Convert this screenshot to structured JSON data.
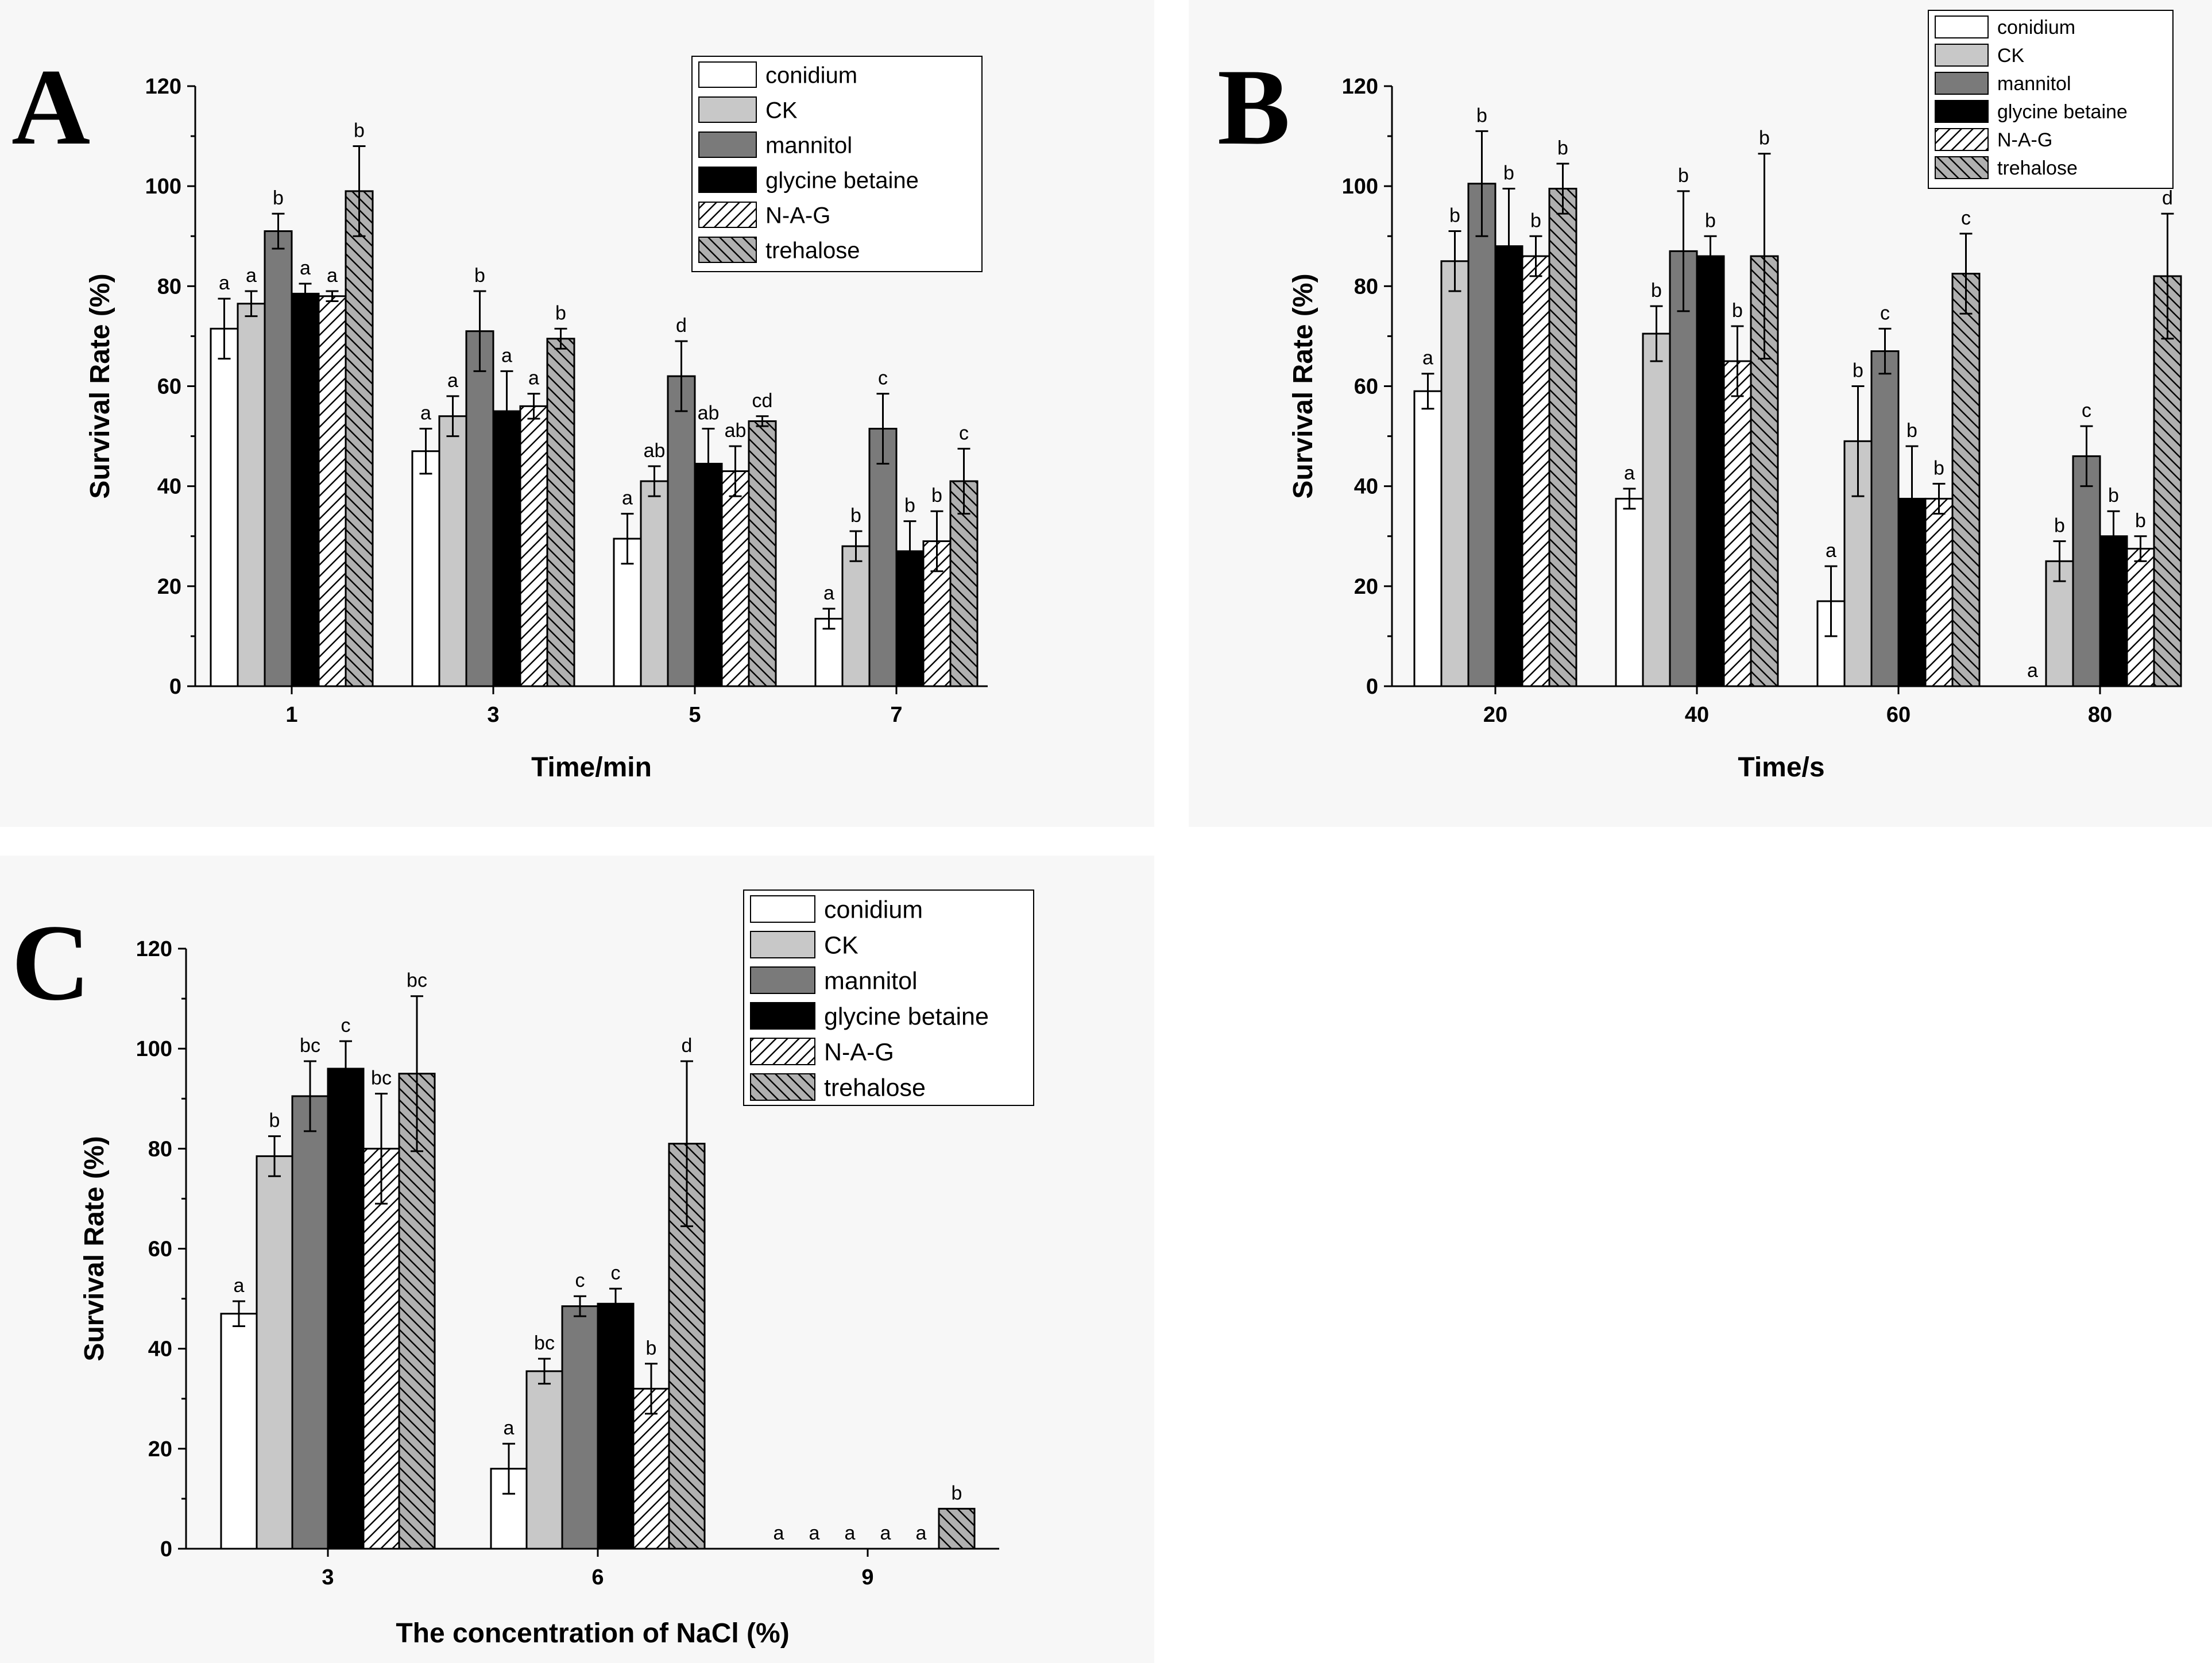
{
  "legend": {
    "series": [
      {
        "name": "conidium",
        "fill": "#ffffff",
        "pattern": "none"
      },
      {
        "name": "CK",
        "fill": "#c8c8c8",
        "pattern": "none"
      },
      {
        "name": "mannitol",
        "fill": "#7a7a7a",
        "pattern": "none"
      },
      {
        "name": "glycine betaine",
        "fill": "#000000",
        "pattern": "none"
      },
      {
        "name": "N-A-G",
        "fill": "#ffffff",
        "pattern": "hatch-forward"
      },
      {
        "name": "trehalose",
        "fill": "#b0b0b0",
        "pattern": "hatch-back"
      }
    ]
  },
  "chart_data": [
    {
      "panel": "A",
      "type": "bar",
      "xlabel": "Time/min",
      "ylabel": "Survival Rate (%)",
      "ylim": [
        0,
        120
      ],
      "yticks": [
        "0",
        "20",
        "40",
        "60",
        "80",
        "100",
        "120"
      ],
      "categories": [
        "1",
        "3",
        "5",
        "7"
      ],
      "series": [
        {
          "name": "conidium",
          "values": [
            71.5,
            47,
            29.5,
            13.5
          ],
          "errors": [
            6,
            4.5,
            5,
            2
          ],
          "sig": [
            "a",
            "a",
            "a",
            "a"
          ]
        },
        {
          "name": "CK",
          "values": [
            76.5,
            54,
            41,
            28
          ],
          "errors": [
            2.5,
            4,
            3,
            3
          ],
          "sig": [
            "a",
            "a",
            "ab",
            "b"
          ]
        },
        {
          "name": "mannitol",
          "values": [
            91,
            71,
            62,
            51.5
          ],
          "errors": [
            3.5,
            8,
            7,
            7
          ],
          "sig": [
            "b",
            "b",
            "d",
            "c"
          ]
        },
        {
          "name": "glycine betaine",
          "values": [
            78.5,
            55,
            44.5,
            27
          ],
          "errors": [
            2,
            8,
            7,
            6
          ],
          "sig": [
            "a",
            "a",
            "ab",
            "b"
          ]
        },
        {
          "name": "N-A-G",
          "values": [
            78,
            56,
            43,
            29
          ],
          "errors": [
            1,
            2.5,
            5,
            6
          ],
          "sig": [
            "a",
            "a",
            "ab",
            "b"
          ]
        },
        {
          "name": "trehalose",
          "values": [
            99,
            69.5,
            53,
            41
          ],
          "errors": [
            9,
            2,
            1,
            6.5
          ],
          "sig": [
            "b",
            "b",
            "cd",
            "c"
          ]
        }
      ]
    },
    {
      "panel": "B",
      "type": "bar",
      "xlabel": "Time/s",
      "ylabel": "Survival Rate (%)",
      "ylim": [
        0,
        120
      ],
      "yticks": [
        "0",
        "20",
        "40",
        "60",
        "80",
        "100",
        "120"
      ],
      "categories": [
        "20",
        "40",
        "60",
        "80"
      ],
      "series": [
        {
          "name": "conidium",
          "values": [
            59,
            37.5,
            17,
            0
          ],
          "errors": [
            3.5,
            2,
            7,
            0
          ],
          "sig": [
            "a",
            "a",
            "a",
            "a"
          ]
        },
        {
          "name": "CK",
          "values": [
            85,
            70.5,
            49,
            25
          ],
          "errors": [
            6,
            5.5,
            11,
            4
          ],
          "sig": [
            "b",
            "b",
            "b",
            "b"
          ]
        },
        {
          "name": "mannitol",
          "values": [
            100.5,
            87,
            67,
            46
          ],
          "errors": [
            10.5,
            12,
            4.5,
            6
          ],
          "sig": [
            "b",
            "b",
            "c",
            "c"
          ]
        },
        {
          "name": "glycine betaine",
          "values": [
            88,
            86,
            37.5,
            30
          ],
          "errors": [
            11.5,
            4,
            10.5,
            5
          ],
          "sig": [
            "b",
            "b",
            "b",
            "b"
          ]
        },
        {
          "name": "N-A-G",
          "values": [
            86,
            65,
            37.5,
            27.5
          ],
          "errors": [
            4,
            7,
            3,
            2.5
          ],
          "sig": [
            "b",
            "b",
            "b",
            "b"
          ]
        },
        {
          "name": "trehalose",
          "values": [
            99.5,
            86,
            82.5,
            82
          ],
          "errors": [
            5,
            20.5,
            8,
            12.5
          ],
          "sig": [
            "b",
            "b",
            "c",
            "d"
          ]
        }
      ]
    },
    {
      "panel": "C",
      "type": "bar",
      "xlabel": "The concentration of NaCl (%)",
      "ylabel": "Survival Rate (%)",
      "ylim": [
        0,
        120
      ],
      "yticks": [
        "0",
        "20",
        "40",
        "60",
        "80",
        "100",
        "120"
      ],
      "categories": [
        "3",
        "6",
        "9"
      ],
      "series": [
        {
          "name": "conidium",
          "values": [
            47,
            16,
            0
          ],
          "errors": [
            2.5,
            5,
            0
          ],
          "sig": [
            "a",
            "a",
            "a"
          ]
        },
        {
          "name": "CK",
          "values": [
            78.5,
            35.5,
            0
          ],
          "errors": [
            4,
            2.5,
            0
          ],
          "sig": [
            "b",
            "bc",
            "a"
          ]
        },
        {
          "name": "mannitol",
          "values": [
            90.5,
            48.5,
            0
          ],
          "errors": [
            7,
            2,
            0
          ],
          "sig": [
            "bc",
            "c",
            "a"
          ]
        },
        {
          "name": "glycine betaine",
          "values": [
            96,
            49,
            0
          ],
          "errors": [
            5.5,
            3,
            0
          ],
          "sig": [
            "c",
            "c",
            "a"
          ]
        },
        {
          "name": "N-A-G",
          "values": [
            80,
            32,
            0
          ],
          "errors": [
            11,
            5,
            0
          ],
          "sig": [
            "bc",
            "b",
            "a"
          ]
        },
        {
          "name": "trehalose",
          "values": [
            95,
            81,
            8
          ],
          "errors": [
            15.5,
            16.5,
            0
          ],
          "sig": [
            "bc",
            "d",
            "b"
          ]
        }
      ]
    }
  ]
}
